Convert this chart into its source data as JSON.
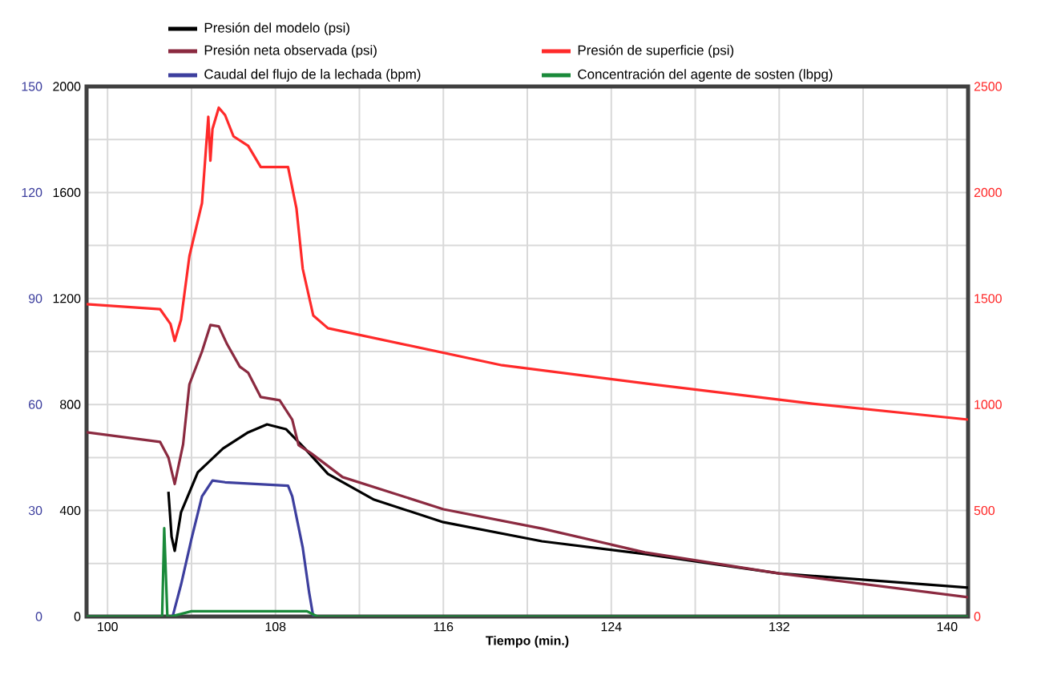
{
  "chart_data": {
    "type": "line",
    "xlabel": "Tiempo (min.)",
    "legend": "top",
    "grid": true,
    "xlim": [
      99,
      141
    ],
    "xticks": [
      100,
      {
        "value": 104,
        "label": null
      },
      108,
      {
        "value": 112,
        "label": null
      },
      116,
      {
        "value": 120,
        "label": null
      },
      124,
      {
        "value": 128,
        "label": null
      },
      132,
      {
        "value": 136,
        "label": null
      },
      140
    ],
    "ylim": [
      0,
      2000
    ],
    "yticks": [
      0,
      {
        "value": 200,
        "label": null
      },
      400,
      {
        "value": 600,
        "label": null
      },
      800,
      {
        "value": 1000,
        "label": null
      },
      1200,
      {
        "value": 1400,
        "label": null
      },
      1600,
      {
        "value": 1800,
        "label": null
      },
      2000
    ],
    "y2lim": [
      0,
      2500
    ],
    "y2ticks": [
      0,
      500,
      1000,
      1500,
      2000,
      2500
    ],
    "y3lim": [
      0,
      150
    ],
    "y3ticks": [
      0,
      30,
      60,
      90,
      120,
      150
    ],
    "series": [
      {
        "name": "Presión del modelo (psi)",
        "color": "#000000",
        "x": [
          102.9,
          103.05,
          103.2,
          103.5,
          104.3,
          105.5,
          106.7,
          107.6,
          108.5,
          109.4,
          110.5,
          112.7,
          116,
          120.7,
          125.6,
          132,
          141
        ],
        "values": [
          471,
          302,
          248,
          393,
          544,
          634,
          695,
          725,
          707,
          634,
          538,
          441,
          356,
          284,
          236,
          163,
          109
        ]
      },
      {
        "name": "Presión neta observada (psi)",
        "color": "#8b2a40",
        "x": [
          99,
          102.5,
          102.9,
          103.2,
          103.6,
          103.9,
          104.5,
          104.9,
          105.3,
          105.7,
          106.3,
          106.7,
          107.3,
          108.2,
          108.8,
          109.1,
          109.7,
          111.2,
          116,
          120.7,
          125.6,
          132,
          141
        ],
        "values": [
          695,
          659,
          600,
          500,
          650,
          876,
          1000,
          1100,
          1095,
          1027,
          943,
          920,
          828,
          816,
          743,
          647,
          616,
          526,
          405,
          332,
          242,
          163,
          73
        ]
      },
      {
        "name": "Presión de superficie (psi)",
        "color": "#ff2a2a",
        "axis": "y2",
        "x": [
          99,
          102.5,
          103,
          103.2,
          103.5,
          103.9,
          104.5,
          104.8,
          104.9,
          105.0,
          105.3,
          105.6,
          106,
          106.7,
          107.3,
          108.6,
          109,
          109.3,
          109.8,
          110.5,
          118.8,
          126,
          133.5,
          141
        ],
        "values": [
          1473,
          1450,
          1380,
          1300,
          1400,
          1700,
          1950,
          2357,
          2150,
          2300,
          2400,
          2365,
          2265,
          2220,
          2120,
          2120,
          1925,
          1640,
          1420,
          1360,
          1185,
          1095,
          1005,
          929
        ]
      },
      {
        "name": "Caudal del flujo de la lechada (bpm)",
        "color": "#3d3f9e",
        "axis": "y3",
        "x": [
          103.1,
          103.5,
          104,
          104.5,
          105,
          105.6,
          108.6,
          108.8,
          109.3,
          109.6,
          109.8
        ],
        "values": [
          0,
          9,
          22,
          34,
          38.5,
          38,
          37,
          34,
          19.5,
          7,
          0
        ]
      },
      {
        "name": "Concentración del agente de sosten (lbpg)",
        "color": "#1a8a3a",
        "axis": "y3",
        "x": [
          99,
          102.6,
          102.7,
          102.85,
          103,
          104,
          109.5,
          110,
          141
        ],
        "values": [
          0,
          0,
          25,
          0,
          0,
          1.5,
          1.5,
          0,
          0
        ]
      }
    ]
  }
}
